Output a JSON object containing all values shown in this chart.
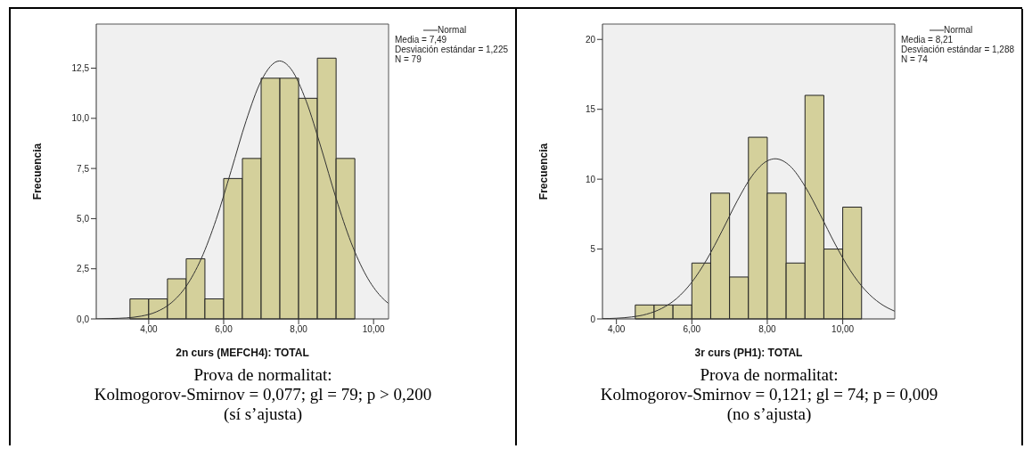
{
  "chart_data": [
    {
      "type": "histogram",
      "xlabel": "2n curs (MEFCH4): TOTAL",
      "ylabel": "Frecuencia",
      "legend": "top right",
      "xlim": [
        2.6,
        10.4
      ],
      "xticks": [
        {
          "value": 4,
          "label": "4,00"
        },
        {
          "value": 6,
          "label": "6,00"
        },
        {
          "value": 8,
          "label": "8,00"
        },
        {
          "value": 10,
          "label": "10,00"
        }
      ],
      "ylim": [
        0,
        14.7
      ],
      "yticks": [
        {
          "value": 0,
          "label": "0,0"
        },
        {
          "value": 2.5,
          "label": "2,5"
        },
        {
          "value": 5,
          "label": "5,0"
        },
        {
          "value": 7.5,
          "label": "7,5"
        },
        {
          "value": 10,
          "label": "10,0"
        },
        {
          "value": 12.5,
          "label": "12,5"
        }
      ],
      "series": [
        {
          "color": "#d4d09b",
          "bins": [
            3.5,
            4,
            4.5,
            5,
            5.5,
            6,
            6.5,
            7,
            7.5,
            8,
            8.5,
            9,
            9.5
          ],
          "values": [
            1,
            1,
            2,
            3,
            1,
            7,
            8,
            12,
            12,
            11,
            13,
            8
          ]
        },
        {
          "type": "line",
          "name": "Normal",
          "color": "#333333",
          "x": [
            2.6,
            3.0,
            3.4,
            3.8,
            4.2,
            4.6,
            5.0,
            5.4,
            5.8,
            6.2,
            6.6,
            7.0,
            7.49,
            7.8,
            8.2,
            8.6,
            9.0,
            9.4,
            9.8,
            10.2,
            10.39
          ],
          "values": [
            0.0,
            0.02,
            0.05,
            0.14,
            0.35,
            0.8,
            1.63,
            3.0,
            4.96,
            7.39,
            9.88,
            11.87,
            12.86,
            12.45,
            10.87,
            8.53,
            6.01,
            3.81,
            2.17,
            1.11,
            0.78
          ]
        }
      ],
      "annotations": [
        "Media = 7,49",
        "Desviación estándar = 1,225",
        "N = 79",
        "Prova de normalitat:",
        "Kolmogorov-Smirnov = 0,077; gl = 79; p > 0,200",
        "(sí s’ajusta)"
      ]
    },
    {
      "type": "histogram",
      "xlabel": "3r curs (PH1): TOTAL",
      "ylabel": "Frecuencia",
      "legend": "top right",
      "xlim": [
        3.63,
        11.38
      ],
      "xticks": [
        {
          "value": 4,
          "label": "4,00"
        },
        {
          "value": 6,
          "label": "6,00"
        },
        {
          "value": 8,
          "label": "8,00"
        },
        {
          "value": 10,
          "label": "10,00"
        }
      ],
      "ylim": [
        0,
        21.1
      ],
      "yticks": [
        0,
        5,
        10,
        15,
        20
      ],
      "series": [
        {
          "color": "#d4d09b",
          "bins": [
            4.5,
            5,
            5.5,
            6,
            6.5,
            7,
            7.5,
            8,
            8.5,
            9,
            9.5,
            10,
            10.5
          ],
          "values": [
            1,
            1,
            1,
            4,
            9,
            3,
            13,
            9,
            4,
            16,
            5,
            8
          ]
        },
        {
          "type": "line",
          "name": "Normal",
          "color": "#333333",
          "x": [
            3.63,
            4.0,
            4.4,
            4.8,
            5.2,
            5.6,
            6.0,
            6.4,
            6.8,
            7.2,
            7.6,
            8.0,
            8.21,
            8.6,
            9.0,
            9.4,
            9.8,
            10.2,
            10.6,
            11.0,
            11.38
          ],
          "values": [
            0.02,
            0.05,
            0.14,
            0.34,
            0.75,
            1.47,
            2.63,
            4.27,
            6.29,
            8.43,
            10.25,
            11.31,
            11.46,
            10.95,
            9.49,
            7.48,
            5.35,
            3.47,
            2.05,
            1.1,
            0.55
          ]
        }
      ],
      "annotations": [
        "Media = 8,21",
        "Desviación estándar = 1,288",
        "N = 74",
        "Prova de normalitat:",
        "Kolmogorov-Smirnov = 0,121; gl = 74; p = 0,009",
        "(no s’ajusta)"
      ]
    }
  ]
}
